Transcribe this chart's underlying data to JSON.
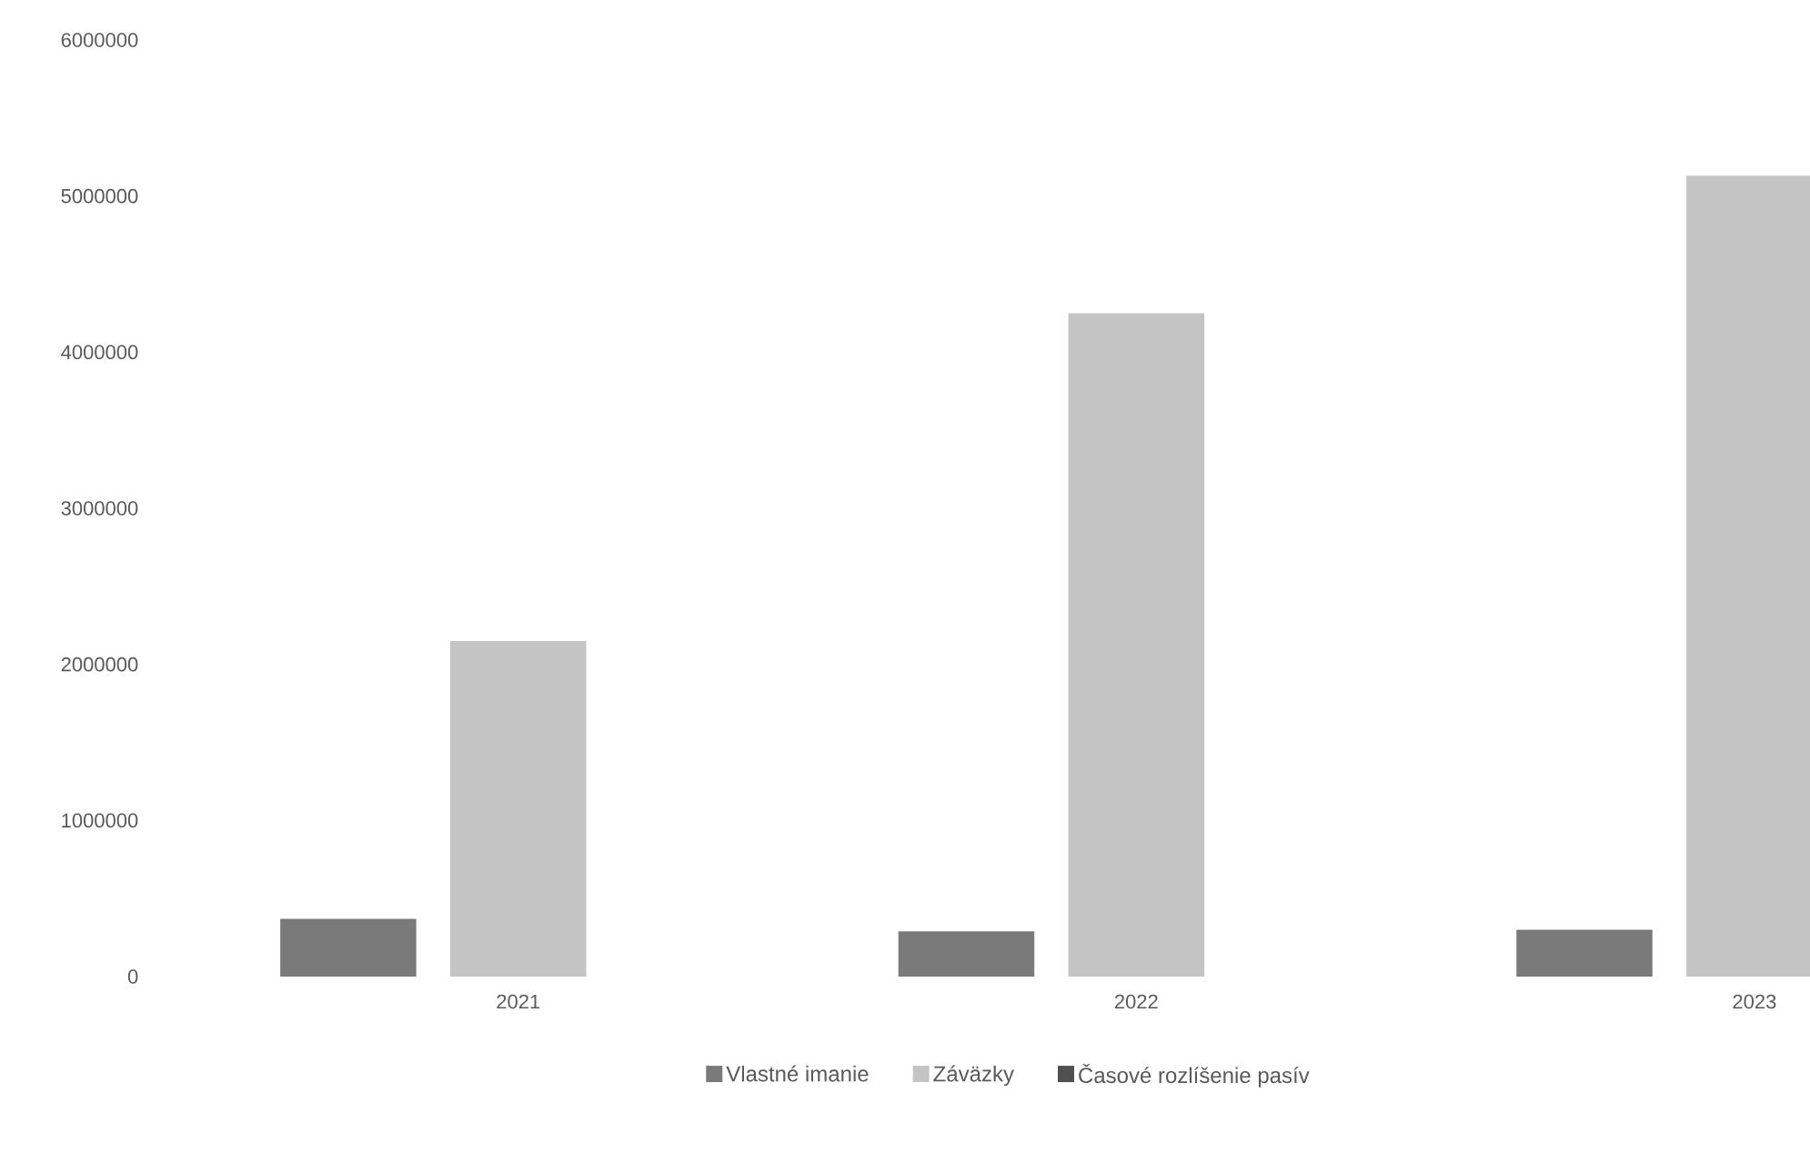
{
  "chart_data": {
    "type": "bar",
    "categories": [
      "2021",
      "2022",
      "2023"
    ],
    "series": [
      {
        "name": "Vlastné imanie",
        "color": "#7a7a7a",
        "values": [
          370000,
          290000,
          300000
        ]
      },
      {
        "name": "Záväzky",
        "color": "#c4c4c4",
        "values": [
          2150000,
          4250000,
          5130000
        ]
      },
      {
        "name": "Časové rozlíšenie pasív",
        "color": "#505050",
        "values": [
          null,
          null,
          null
        ]
      }
    ],
    "ylim": [
      0,
      6000000
    ],
    "yticks": [
      0,
      1000000,
      2000000,
      3000000,
      4000000,
      5000000,
      6000000
    ],
    "grid": false,
    "legend": "bottom"
  }
}
